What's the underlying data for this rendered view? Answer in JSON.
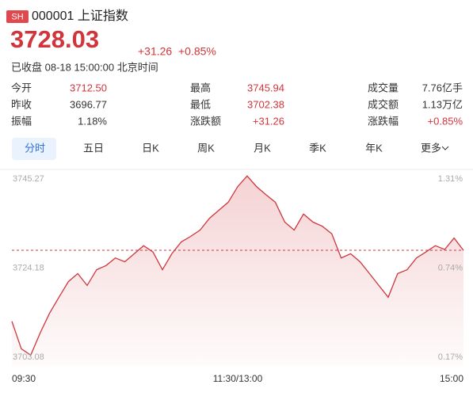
{
  "header": {
    "badge": "SH",
    "name": "000001 上证指数",
    "price": "3728.03",
    "change": "+31.26",
    "change_pct": "+0.85%",
    "status": "已收盘 08-18 15:00:00 北京时间"
  },
  "stats": {
    "rows": [
      [
        {
          "label": "今开",
          "value": "3712.50",
          "color": "#d0353b"
        },
        {
          "label": "最高",
          "value": "3745.94",
          "color": "#d0353b"
        },
        {
          "label": "成交量",
          "value": "7.76亿手",
          "color": "#333333"
        }
      ],
      [
        {
          "label": "昨收",
          "value": "3696.77",
          "color": "#333333"
        },
        {
          "label": "最低",
          "value": "3702.38",
          "color": "#d0353b"
        },
        {
          "label": "成交额",
          "value": "1.13万亿",
          "color": "#333333"
        }
      ],
      [
        {
          "label": "振幅",
          "value": "1.18%",
          "color": "#333333"
        },
        {
          "label": "涨跌额",
          "value": "+31.26",
          "color": "#d0353b"
        },
        {
          "label": "涨跌幅",
          "value": "+0.85%",
          "color": "#d0353b"
        }
      ]
    ]
  },
  "tabs": [
    "分时",
    "五日",
    "日K",
    "周K",
    "月K",
    "季K",
    "年K",
    "更多"
  ],
  "chart_data": {
    "type": "line",
    "color": "#d0353b",
    "categories": [
      "09:30",
      null,
      null,
      null,
      null,
      null,
      null,
      null,
      null,
      null,
      null,
      null,
      null,
      null,
      null,
      null,
      null,
      null,
      null,
      null,
      null,
      null,
      null,
      null,
      "11:30/13:00",
      null,
      null,
      null,
      null,
      null,
      null,
      null,
      null,
      null,
      null,
      null,
      null,
      null,
      null,
      null,
      null,
      null,
      null,
      null,
      null,
      null,
      null,
      null,
      "15:00"
    ],
    "values": [
      3711.2,
      3704.7,
      3703.2,
      3708.4,
      3713.1,
      3716.9,
      3720.6,
      3722.5,
      3719.7,
      3723.4,
      3724.4,
      3726.2,
      3725.3,
      3727.2,
      3729.1,
      3727.6,
      3723.4,
      3727.2,
      3730.0,
      3731.3,
      3732.8,
      3735.6,
      3737.5,
      3739.4,
      3743.1,
      3745.6,
      3743.1,
      3741.2,
      3739.4,
      3734.7,
      3732.8,
      3736.6,
      3734.7,
      3733.7,
      3731.9,
      3726.2,
      3727.2,
      3725.3,
      3722.5,
      3719.7,
      3716.9,
      3722.5,
      3723.4,
      3726.2,
      3727.6,
      3729.1,
      3728.2,
      3730.9,
      3728.0
    ],
    "ylim": [
      3703.08,
      3745.27
    ],
    "yticks": [
      3703.08,
      3724.18,
      3745.27
    ],
    "y2lim": [
      0.17,
      1.31
    ],
    "y2ticks": [
      {
        "value": 0.17,
        "label": "0.17%"
      },
      {
        "value": 0.74,
        "label": "0.74%"
      },
      {
        "value": 1.31,
        "label": "1.31%"
      }
    ]
  }
}
